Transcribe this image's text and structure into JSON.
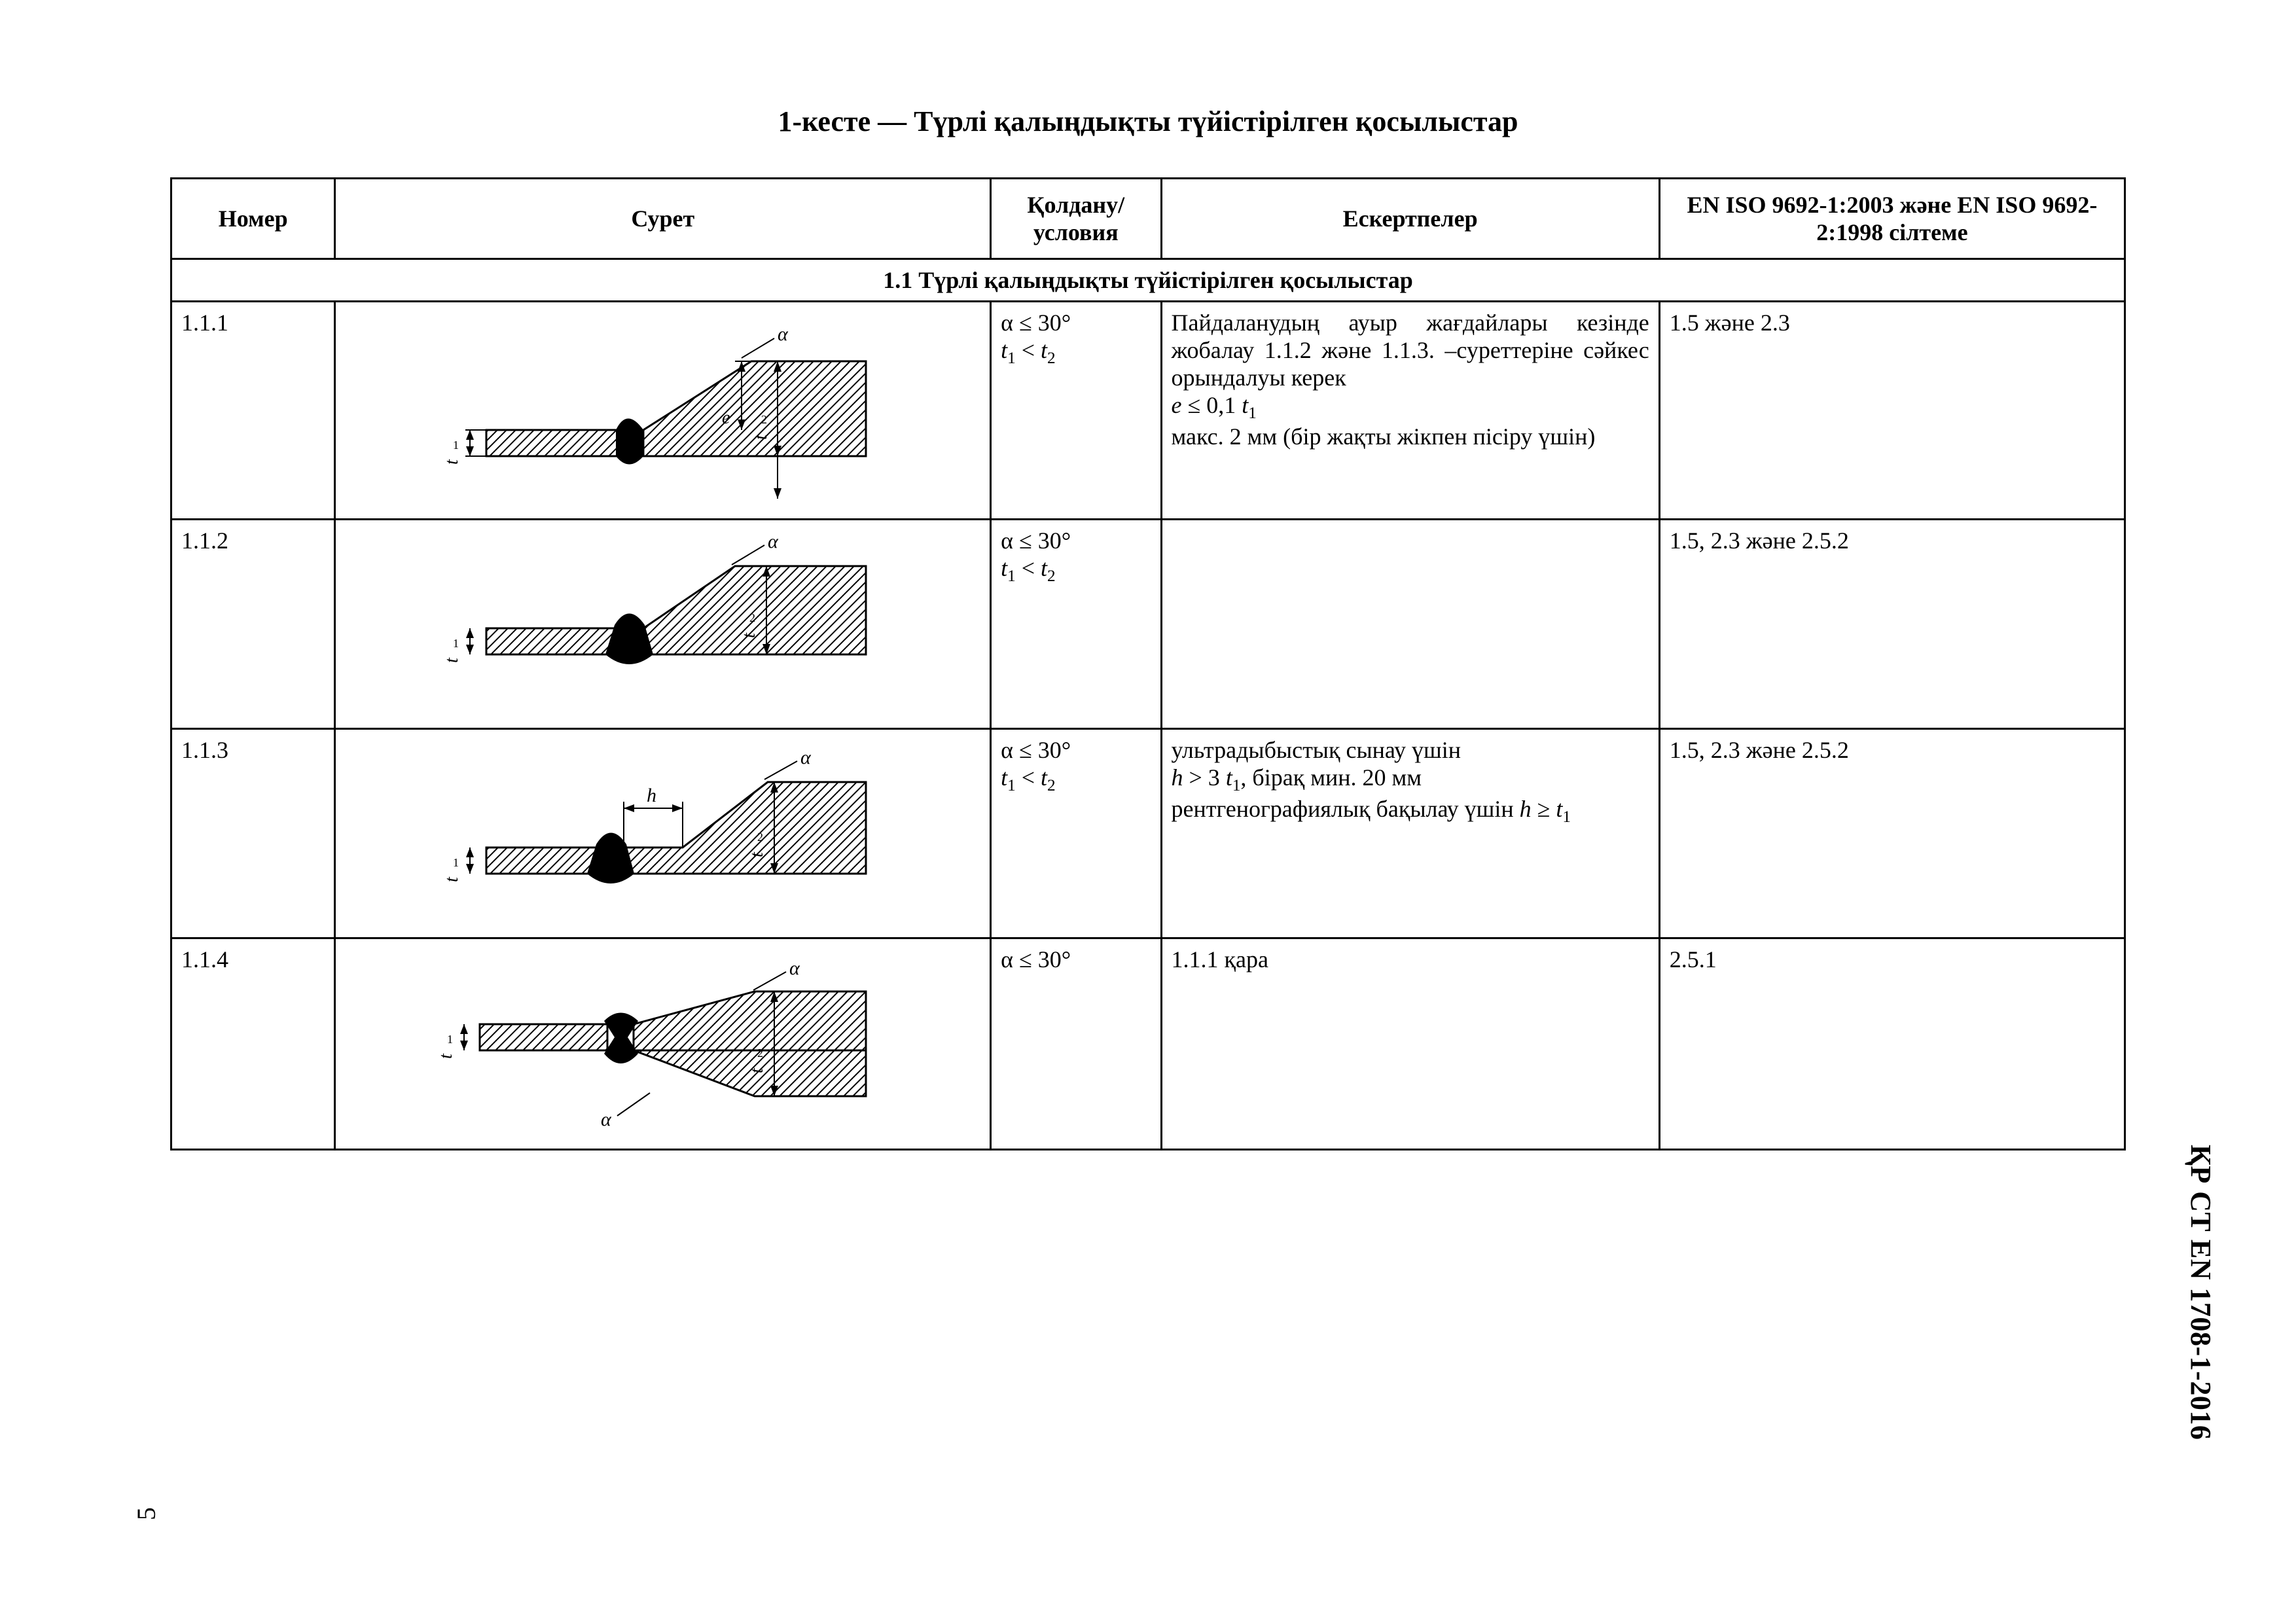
{
  "title": "1-кесте — Түрлі қалыңдықты түйістірілген қосылыстар",
  "columns": {
    "num": "Номер",
    "fig": "Сурет",
    "cond": "Қолдану/ условия",
    "note": "Ескертпелер",
    "ref": "EN ISO 9692-1:2003 және EN ISO 9692-2:1998 сілтеме"
  },
  "section_header": "1.1 Түрлі қалыңдықты түйістірілген қосылыстар",
  "rows": [
    {
      "num": "1.1.1",
      "cond_html": "α ≤ 30°<br><span class='math'>t</span><span class='sub'>1</span> &lt; <span class='math'>t</span><span class='sub'>2</span>",
      "note_html": "Пайдаланудың ауыр жағдайлары кезінде жобалау 1.1.2 және 1.1.3. –суреттеріне сәйкес орындалуы керек<br><span class='math'>e</span> ≤ 0,1 <span class='math'>t</span><span class='sub'>1</span><br>макс. 2 мм (бір жақты жікпен пісіру үшін)",
      "ref": "1.5 және 2.3",
      "figure_svg": "fig1"
    },
    {
      "num": "1.1.2",
      "cond_html": "α ≤ 30°<br><span class='math'>t</span><span class='sub'>1</span> &lt; <span class='math'>t</span><span class='sub'>2</span>",
      "note_html": "",
      "ref": "1.5, 2.3 және 2.5.2",
      "figure_svg": "fig2"
    },
    {
      "num": "1.1.3",
      "cond_html": "α ≤ 30°<br><span class='math'>t</span><span class='sub'>1</span> &lt; <span class='math'>t</span><span class='sub'>2</span>",
      "note_html": "ультрадыбыстық сынау үшін<br><span class='math'>h</span> &gt; 3 <span class='math'>t</span><span class='sub'>1</span>, бірақ мин. 20 мм<br>рентгенографиялық бақылау үшін <span class='math'>h</span> ≥ <span class='math'>t</span><span class='sub'>1</span>",
      "ref": "1.5, 2.3 және 2.5.2",
      "figure_svg": "fig3"
    },
    {
      "num": "1.1.4",
      "cond_html": "α ≤ 30°",
      "note_html": "1.1.1 қара",
      "ref": "2.5.1",
      "figure_svg": "fig4"
    }
  ],
  "page_number": "5",
  "side_label": "ҚР СТ EN 1708-1-2016",
  "svg": {
    "stroke": "#000000",
    "fill_solid": "#000000",
    "fill_none": "none",
    "hatch_stroke": "#000000",
    "stroke_w": 3,
    "thin_w": 2,
    "font_family": "Times New Roman, serif",
    "label_size": 30,
    "label_italic_size": 30
  }
}
